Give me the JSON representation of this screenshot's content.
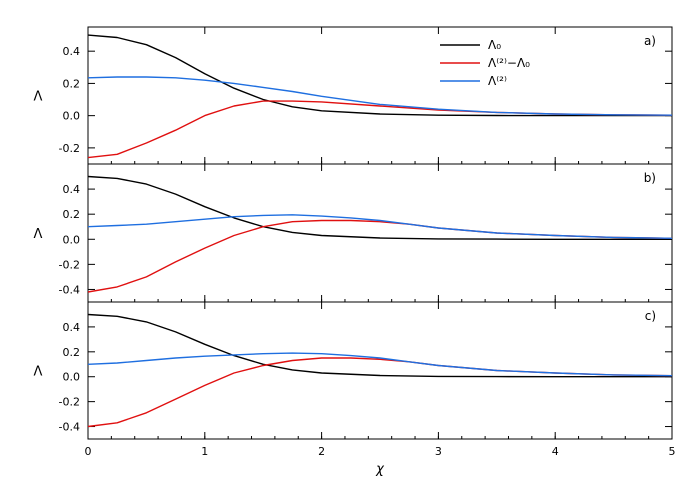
{
  "chart_data": {
    "type": "line",
    "xlabel": "χ",
    "ylabel": "Λ",
    "xlim": [
      0,
      5
    ],
    "xticks": [
      0,
      1,
      2,
      3,
      4,
      5
    ],
    "legend": {
      "placement": "top-right",
      "entries": [
        {
          "label": "Λ₀",
          "color": "#000000"
        },
        {
          "label": "Λ⁽²⁾−Λ₀",
          "color": "#e01010"
        },
        {
          "label": "Λ⁽²⁾",
          "color": "#1f6fe0"
        }
      ]
    },
    "panels": [
      {
        "label": "a)",
        "ylim": [
          -0.3,
          0.55
        ],
        "yticks": [
          -0.2,
          0.0,
          0.2,
          0.4
        ],
        "series": [
          {
            "name": "Λ₀",
            "color": "#000000",
            "x": [
              0,
              0.25,
              0.5,
              0.75,
              1.0,
              1.25,
              1.5,
              1.75,
              2.0,
              2.5,
              3.0,
              3.5,
              4.0,
              4.5,
              5.0
            ],
            "y": [
              0.5,
              0.485,
              0.44,
              0.36,
              0.26,
              0.17,
              0.1,
              0.055,
              0.03,
              0.01,
              0.003,
              0.001,
              0.0,
              0.0,
              0.0
            ]
          },
          {
            "name": "Λ⁽²⁾−Λ₀",
            "color": "#e01010",
            "x": [
              0,
              0.25,
              0.5,
              0.75,
              1.0,
              1.25,
              1.5,
              1.75,
              2.0,
              2.5,
              3.0,
              3.5,
              4.0,
              4.5,
              5.0
            ],
            "y": [
              -0.26,
              -0.24,
              -0.17,
              -0.09,
              0.0,
              0.06,
              0.09,
              0.09,
              0.085,
              0.06,
              0.035,
              0.02,
              0.01,
              0.005,
              0.003
            ]
          },
          {
            "name": "Λ⁽²⁾",
            "color": "#1f6fe0",
            "x": [
              0,
              0.25,
              0.5,
              0.75,
              1.0,
              1.25,
              1.5,
              1.75,
              2.0,
              2.5,
              3.0,
              3.5,
              4.0,
              4.5,
              5.0
            ],
            "y": [
              0.235,
              0.24,
              0.24,
              0.235,
              0.22,
              0.2,
              0.175,
              0.15,
              0.12,
              0.07,
              0.04,
              0.02,
              0.01,
              0.005,
              0.003
            ]
          }
        ]
      },
      {
        "label": "b)",
        "ylim": [
          -0.5,
          0.6
        ],
        "yticks": [
          -0.4,
          -0.2,
          0.0,
          0.2,
          0.4
        ],
        "series": [
          {
            "name": "Λ₀",
            "color": "#000000",
            "x": [
              0,
              0.25,
              0.5,
              0.75,
              1.0,
              1.25,
              1.5,
              1.75,
              2.0,
              2.5,
              3.0,
              3.5,
              4.0,
              4.5,
              5.0
            ],
            "y": [
              0.5,
              0.485,
              0.44,
              0.36,
              0.26,
              0.17,
              0.1,
              0.055,
              0.03,
              0.01,
              0.003,
              0.001,
              0.0,
              0.0,
              0.0
            ]
          },
          {
            "name": "Λ⁽²⁾−Λ₀",
            "color": "#e01010",
            "x": [
              0,
              0.25,
              0.5,
              0.75,
              1.0,
              1.25,
              1.5,
              1.75,
              2.0,
              2.25,
              2.5,
              2.75,
              3.0,
              3.5,
              4.0,
              4.5,
              5.0
            ],
            "y": [
              -0.42,
              -0.38,
              -0.3,
              -0.18,
              -0.07,
              0.03,
              0.1,
              0.14,
              0.15,
              0.15,
              0.14,
              0.12,
              0.09,
              0.05,
              0.03,
              0.015,
              0.008
            ]
          },
          {
            "name": "Λ⁽²⁾",
            "color": "#1f6fe0",
            "x": [
              0,
              0.25,
              0.5,
              0.75,
              1.0,
              1.25,
              1.5,
              1.75,
              2.0,
              2.25,
              2.5,
              2.75,
              3.0,
              3.5,
              4.0,
              4.5,
              5.0
            ],
            "y": [
              0.1,
              0.11,
              0.12,
              0.14,
              0.16,
              0.18,
              0.19,
              0.195,
              0.185,
              0.17,
              0.15,
              0.12,
              0.09,
              0.05,
              0.03,
              0.015,
              0.008
            ]
          }
        ]
      },
      {
        "label": "c)",
        "ylim": [
          -0.5,
          0.6
        ],
        "yticks": [
          -0.4,
          -0.2,
          0.0,
          0.2,
          0.4
        ],
        "series": [
          {
            "name": "Λ₀",
            "color": "#000000",
            "x": [
              0,
              0.25,
              0.5,
              0.75,
              1.0,
              1.25,
              1.5,
              1.75,
              2.0,
              2.5,
              3.0,
              3.5,
              4.0,
              4.5,
              5.0
            ],
            "y": [
              0.5,
              0.485,
              0.44,
              0.36,
              0.26,
              0.17,
              0.1,
              0.055,
              0.03,
              0.01,
              0.003,
              0.001,
              0.0,
              0.0,
              0.0
            ]
          },
          {
            "name": "Λ⁽²⁾−Λ₀",
            "color": "#e01010",
            "x": [
              0,
              0.25,
              0.5,
              0.75,
              1.0,
              1.25,
              1.5,
              1.75,
              2.0,
              2.25,
              2.5,
              2.75,
              3.0,
              3.5,
              4.0,
              4.5,
              5.0
            ],
            "y": [
              -0.4,
              -0.37,
              -0.29,
              -0.18,
              -0.07,
              0.03,
              0.09,
              0.13,
              0.15,
              0.15,
              0.14,
              0.12,
              0.09,
              0.05,
              0.03,
              0.015,
              0.008
            ]
          },
          {
            "name": "Λ⁽²⁾",
            "color": "#1f6fe0",
            "x": [
              0,
              0.25,
              0.5,
              0.75,
              1.0,
              1.25,
              1.5,
              1.75,
              2.0,
              2.25,
              2.5,
              2.75,
              3.0,
              3.5,
              4.0,
              4.5,
              5.0
            ],
            "y": [
              0.1,
              0.11,
              0.13,
              0.15,
              0.165,
              0.175,
              0.185,
              0.19,
              0.185,
              0.17,
              0.15,
              0.12,
              0.09,
              0.05,
              0.03,
              0.015,
              0.008
            ]
          }
        ]
      }
    ]
  }
}
